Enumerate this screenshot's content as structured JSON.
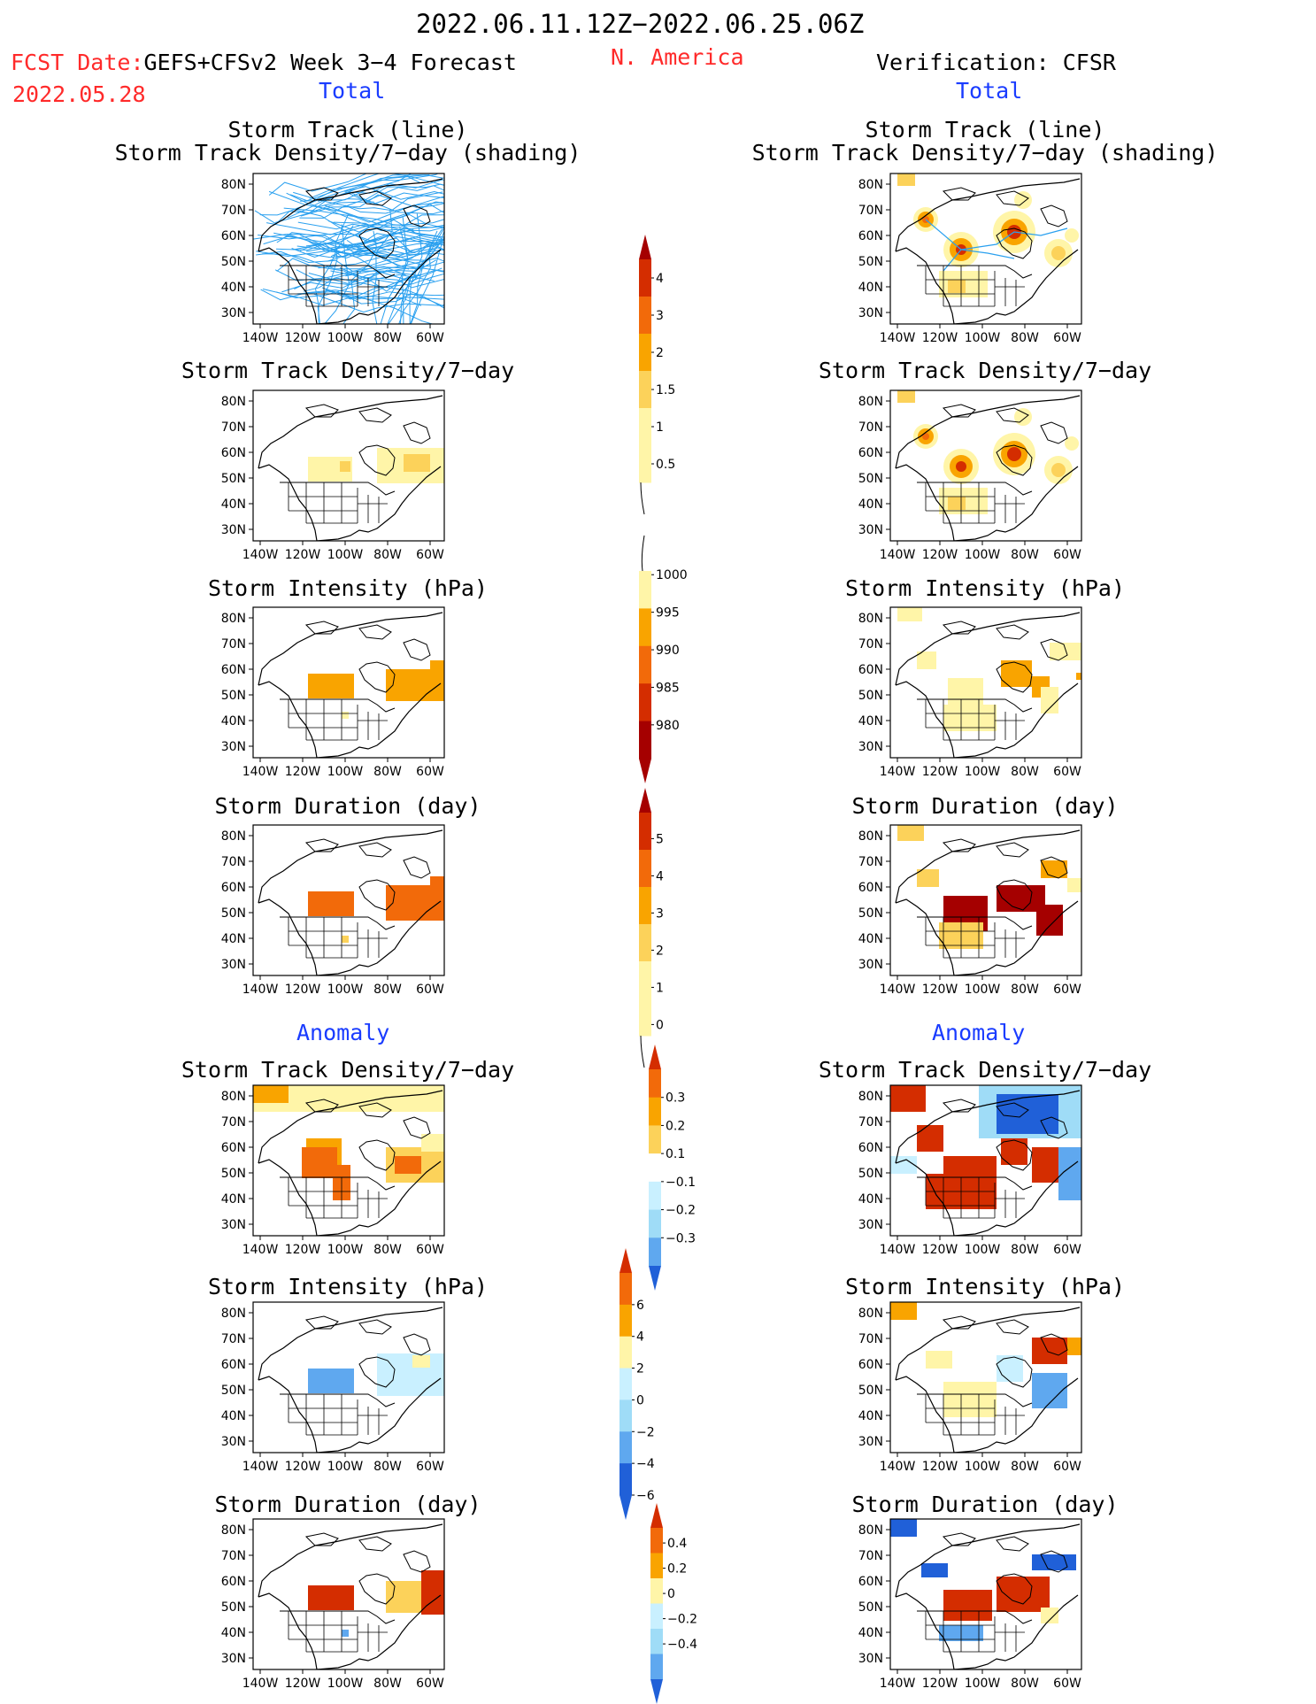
{
  "header": {
    "period": "2022.06.11.12Z−2022.06.25.06Z",
    "fcst_label": "FCST Date:",
    "fcst_model": "GEFS+CFSv2 Week 3−4 Forecast",
    "fcst_date": "2022.05.28",
    "region": "N. America",
    "verification": "Verification: CFSR"
  },
  "sections": {
    "total_left": "Total",
    "total_right": "Total",
    "anomaly_left": "Anomaly",
    "anomaly_right": "Anomaly"
  },
  "titles": {
    "track_line": "Storm Track (line)",
    "track_density_shading": "Storm Track Density/7−day (shading)",
    "track_density": "Storm Track Density/7−day",
    "intensity": "Storm Intensity (hPa)",
    "duration": "Storm Duration (day)"
  },
  "axes": {
    "lat_ticks": [
      "80N",
      "70N",
      "60N",
      "50N",
      "40N",
      "30N"
    ],
    "lon_ticks": [
      "140W",
      "120W",
      "100W",
      "80W",
      "60W"
    ]
  },
  "colorbars": {
    "density_total": [
      "4",
      "3",
      "2",
      "1.5",
      "1",
      "0.5"
    ],
    "intensity_total": [
      "1000",
      "995",
      "990",
      "985",
      "980"
    ],
    "duration_total": [
      "5",
      "4",
      "3",
      "2",
      "1",
      "0"
    ],
    "density_anom": [
      "0.3",
      "0.2",
      "0.1",
      "−0.1",
      "−0.2",
      "−0.3"
    ],
    "intensity_anom": [
      "6",
      "4",
      "2",
      "0",
      "−2",
      "−4",
      "−6"
    ],
    "duration_anom": [
      "0.4",
      "0.2",
      "0",
      "−0.2",
      "−0.4"
    ]
  },
  "colors": {
    "title_red": "#ff2a2a",
    "title_blue": "#1a3cff",
    "track_line": "#2aa0ef",
    "warm_1": "#fff5a8",
    "warm_2": "#fcd25a",
    "warm_3": "#f9a400",
    "warm_4": "#f26a0a",
    "warm_5": "#d42d00",
    "warm_6": "#a50000",
    "cool_1": "#c9f0ff",
    "cool_2": "#9fdcf7",
    "cool_3": "#5fa8ef",
    "cool_4": "#2060d8"
  }
}
